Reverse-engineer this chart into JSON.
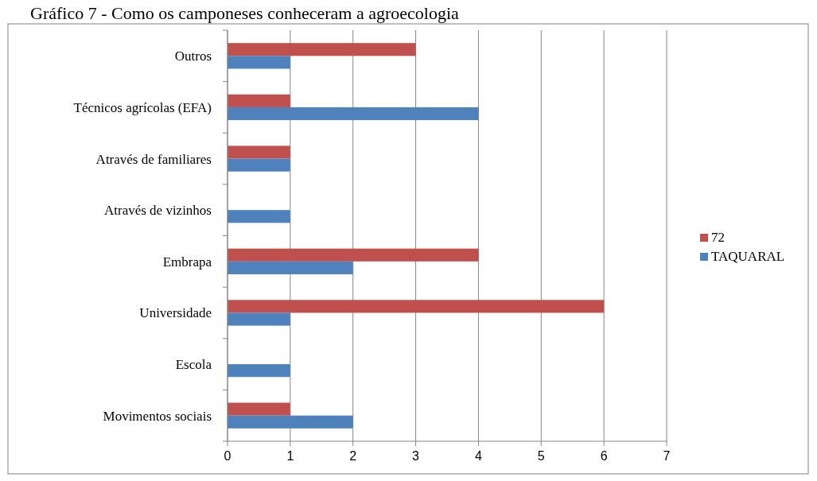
{
  "chart_data": {
    "type": "bar",
    "orientation": "horizontal",
    "title": "Gráfico 7 - Como os camponeses conheceram a agroecologia",
    "categories": [
      "Outros",
      "Técnicos agrícolas (EFA)",
      "Através de familiares",
      "Através de vizinhos",
      "Embrapa",
      "Universidade",
      "Escola",
      "Movimentos sociais"
    ],
    "series": [
      {
        "name": "72",
        "color": "#c0504d",
        "values": [
          3,
          1,
          1,
          null,
          4,
          6,
          null,
          1
        ]
      },
      {
        "name": "TAQUARAL",
        "color": "#4f81bd",
        "values": [
          1,
          4,
          1,
          1,
          2,
          1,
          1,
          2
        ]
      }
    ],
    "xlim": [
      0,
      7
    ],
    "xticks": [
      0,
      1,
      2,
      3,
      4,
      5,
      6,
      7
    ],
    "grid": "x",
    "legend": "right"
  }
}
